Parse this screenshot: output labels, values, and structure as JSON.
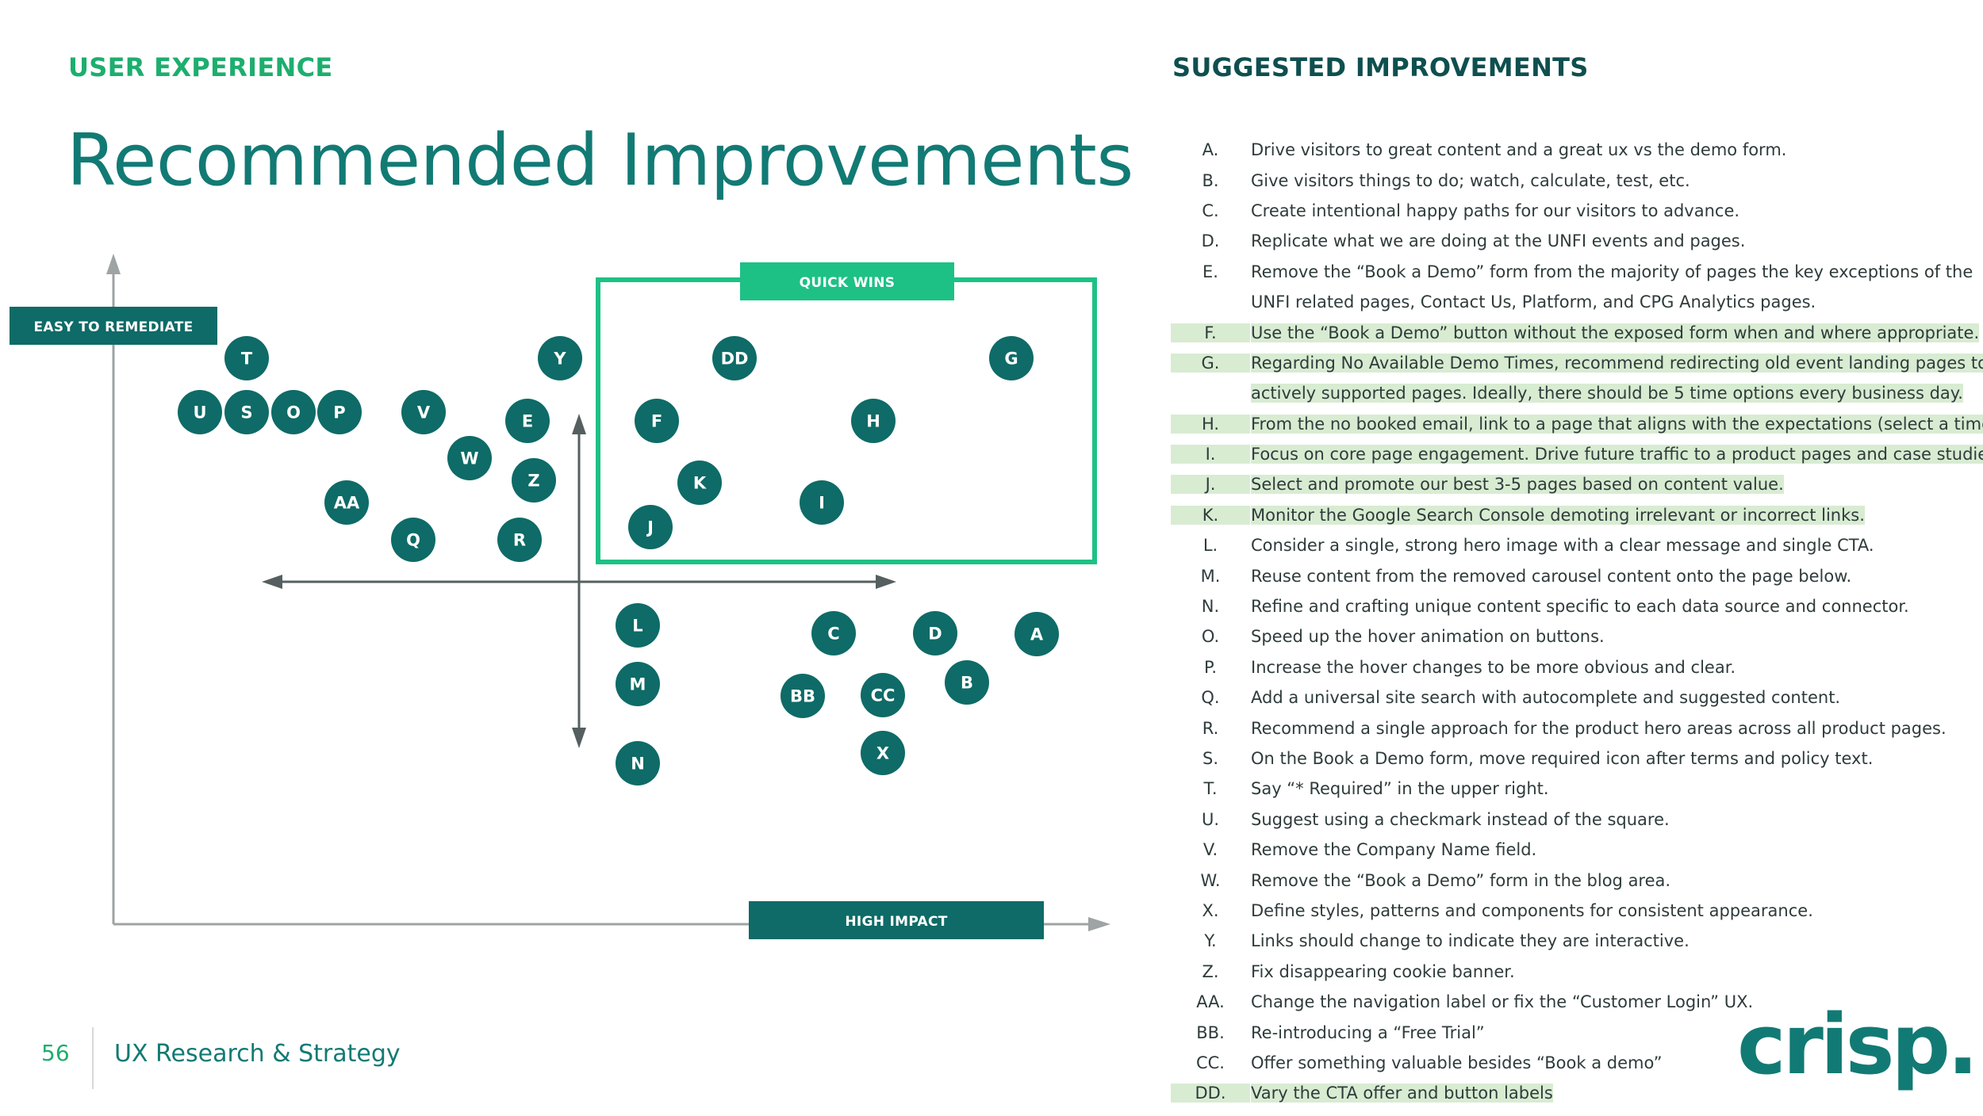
{
  "header": {
    "section_label": "USER EXPERIENCE",
    "title": "Recommended Improvements"
  },
  "matrix": {
    "y_axis_label": "EASY TO REMEDIATE",
    "x_axis_label": "HIGH IMPACT",
    "quick_wins_label": "QUICK WINS",
    "items": [
      "T",
      "Y",
      "DD",
      "G",
      "U",
      "S",
      "O",
      "P",
      "V",
      "E",
      "F",
      "H",
      "W",
      "Z",
      "K",
      "AA",
      "I",
      "Q",
      "R",
      "J",
      "L",
      "C",
      "D",
      "A",
      "M",
      "BB",
      "CC",
      "B",
      "X",
      "N"
    ]
  },
  "suggested": {
    "heading": "SUGGESTED IMPROVEMENTS",
    "items": [
      {
        "letter": "A.",
        "text": "Drive visitors to great content and a great ux vs the demo form.",
        "highlight": false
      },
      {
        "letter": "B.",
        "text": "Give visitors things to do; watch, calculate, test, etc.",
        "highlight": false
      },
      {
        "letter": "C.",
        "text": "Create intentional happy paths for our visitors to advance.",
        "highlight": false
      },
      {
        "letter": "D.",
        "text": "Replicate what we are doing at the UNFI events and pages.",
        "highlight": false
      },
      {
        "letter": "E.",
        "text": "Remove the “Book a Demo” form from the majority of pages the key exceptions of the",
        "text2": "UNFI related pages, Contact Us, Platform, and CPG Analytics pages.",
        "highlight": false
      },
      {
        "letter": "F.",
        "text": "Use the “Book a Demo” button without the exposed form when and where appropriate.",
        "highlight": true
      },
      {
        "letter": "G.",
        "text": "Regarding No Available Demo Times, recommend redirecting old event landing pages to",
        "text2": "actively supported pages. Ideally, there should be 5 time options every business day.",
        "highlight": true
      },
      {
        "letter": "H.",
        "text": "From the no booked email, link to a page that aligns with the expectations (select a time).",
        "highlight": true
      },
      {
        "letter": "I.",
        "text": "Focus on core page engagement. Drive future traffic to a product pages and case studies.",
        "highlight": true
      },
      {
        "letter": "J.",
        "text": "Select and promote our best 3-5 pages based on content value.",
        "highlight": true
      },
      {
        "letter": "K.",
        "text": "Monitor the Google Search Console demoting irrelevant or incorrect links.",
        "highlight": true
      },
      {
        "letter": "L.",
        "text": "Consider a single, strong hero image with a clear message and single CTA.",
        "highlight": false
      },
      {
        "letter": "M.",
        "text": "Reuse content from the removed carousel content onto the page below.",
        "highlight": false
      },
      {
        "letter": "N.",
        "text": "Refine and crafting unique content specific to each data source and connector.",
        "highlight": false
      },
      {
        "letter": "O.",
        "text": "Speed up the hover animation on buttons.",
        "highlight": false
      },
      {
        "letter": "P.",
        "text": "Increase the hover changes to be more obvious and clear.",
        "highlight": false
      },
      {
        "letter": "Q.",
        "text": "Add a universal site search with autocomplete and suggested content.",
        "highlight": false
      },
      {
        "letter": "R.",
        "text": "Recommend a single approach for the product hero areas across all product pages.",
        "highlight": false
      },
      {
        "letter": "S.",
        "text": "On the Book a Demo form, move required icon after terms and policy text.",
        "highlight": false
      },
      {
        "letter": "T.",
        "text": "Say “* Required” in the upper right.",
        "highlight": false
      },
      {
        "letter": "U.",
        "text": "Suggest using a checkmark instead of the square.",
        "highlight": false
      },
      {
        "letter": "V.",
        "text": "Remove the Company Name field.",
        "highlight": false
      },
      {
        "letter": "W.",
        "text": "Remove the “Book a Demo” form in the blog area.",
        "highlight": false
      },
      {
        "letter": "X.",
        "text": "Define styles, patterns and components for consistent appearance.",
        "highlight": false
      },
      {
        "letter": "Y.",
        "text": "Links should change to indicate they are interactive.",
        "highlight": false
      },
      {
        "letter": "Z.",
        "text": "Fix disappearing cookie banner.",
        "highlight": false
      },
      {
        "letter": "AA.",
        "text": "Change the navigation label or fix the “Customer Login” UX.",
        "highlight": false
      },
      {
        "letter": "BB.",
        "text": "Re-introducing a “Free Trial”",
        "highlight": false
      },
      {
        "letter": "CC.",
        "text": "Offer something valuable besides “Book a demo”",
        "highlight": false
      },
      {
        "letter": "DD.",
        "text": "Vary the CTA offer and button labels",
        "highlight": true
      }
    ]
  },
  "footer": {
    "page_number": "56",
    "section": "UX Research & Strategy",
    "logo_text": "crisp."
  },
  "colors": {
    "brand_teal": "#127a74",
    "node_teal": "#0e6b67",
    "accent_green": "#1dc185",
    "highlight_green": "#d8ecd2"
  }
}
